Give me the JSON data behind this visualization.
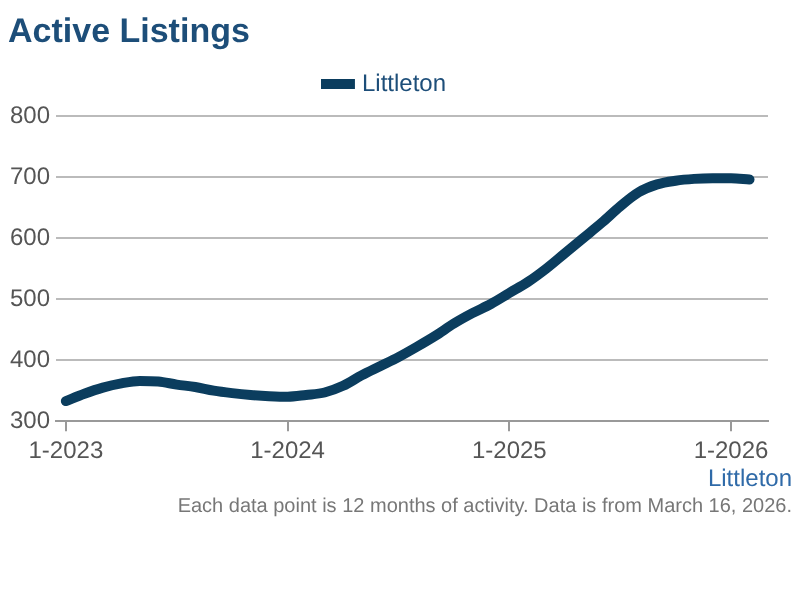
{
  "chart_data": {
    "type": "line",
    "title": "Active Listings",
    "x": [
      "2023-01",
      "2023-02",
      "2023-03",
      "2023-04",
      "2023-05",
      "2023-06",
      "2023-07",
      "2023-08",
      "2023-09",
      "2023-10",
      "2023-11",
      "2023-12",
      "2024-01",
      "2024-02",
      "2024-03",
      "2024-04",
      "2024-05",
      "2024-06",
      "2024-07",
      "2024-08",
      "2024-09",
      "2024-10",
      "2024-11",
      "2024-12",
      "2025-01",
      "2025-02",
      "2025-03",
      "2025-04",
      "2025-05",
      "2025-06",
      "2025-07",
      "2025-08",
      "2025-09",
      "2025-10",
      "2025-11",
      "2025-12",
      "2026-01",
      "2026-02"
    ],
    "series": [
      {
        "name": "Littleton",
        "color": "#0b3d5e",
        "values": [
          333,
          345,
          355,
          362,
          366,
          365,
          360,
          356,
          350,
          346,
          343,
          341,
          340,
          343,
          347,
          358,
          375,
          390,
          405,
          422,
          440,
          460,
          477,
          492,
          510,
          528,
          550,
          575,
          600,
          625,
          652,
          675,
          688,
          694,
          697,
          698,
          698,
          696
        ]
      }
    ],
    "xlim": [
      "2022-12-15",
      "2026-03"
    ],
    "xticks": [
      {
        "value": "2023-01",
        "label": "1-2023"
      },
      {
        "value": "2024-01",
        "label": "1-2024"
      },
      {
        "value": "2025-01",
        "label": "1-2025"
      },
      {
        "value": "2026-01",
        "label": "1-2026"
      }
    ],
    "ylim": [
      300,
      800
    ],
    "yticks": [
      300,
      400,
      500,
      600,
      700,
      800
    ],
    "grid": "y",
    "legend": "top",
    "marker": "none",
    "line_style": "solid",
    "annotations": [
      "Littleton",
      "Each data point is 12 months of activity. Data is from March 16, 2026."
    ]
  }
}
